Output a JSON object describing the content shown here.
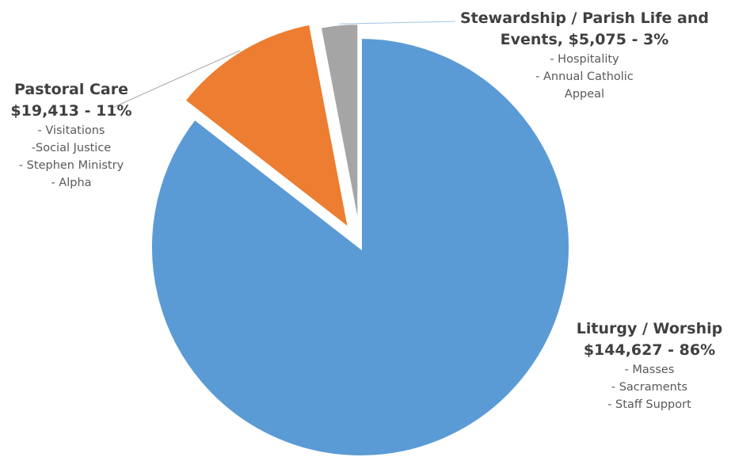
{
  "chart_data": {
    "type": "pie",
    "title": "",
    "colors": [
      "#5B9BD5",
      "#ED7D31",
      "#A5A5A5"
    ],
    "slices": [
      {
        "key": "liturgy",
        "name": "Liturgy / Worship",
        "amount": 144627,
        "value_text": "$144,627 - 86%",
        "percent": 86,
        "color": "#5B9BD5",
        "items": [
          "- Masses",
          "- Sacraments",
          "- Staff Support"
        ]
      },
      {
        "key": "pastoral",
        "name": "Pastoral Care",
        "amount": 19413,
        "value_text": "$19,413  - 11%",
        "percent": 11,
        "color": "#ED7D31",
        "items": [
          "- Visitations",
          "-Social Justice",
          "- Stephen Ministry",
          "- Alpha"
        ]
      },
      {
        "key": "stewardship",
        "name_line1": "Stewardship / Parish Life and",
        "name_line2": "Events,  $5,075  -  3%",
        "amount": 5075,
        "percent": 3,
        "color": "#A5A5A5",
        "items": [
          "- Hospitality",
          "- Annual Catholic",
          "Appeal"
        ]
      }
    ],
    "leader_lines": true,
    "exploded": true
  }
}
